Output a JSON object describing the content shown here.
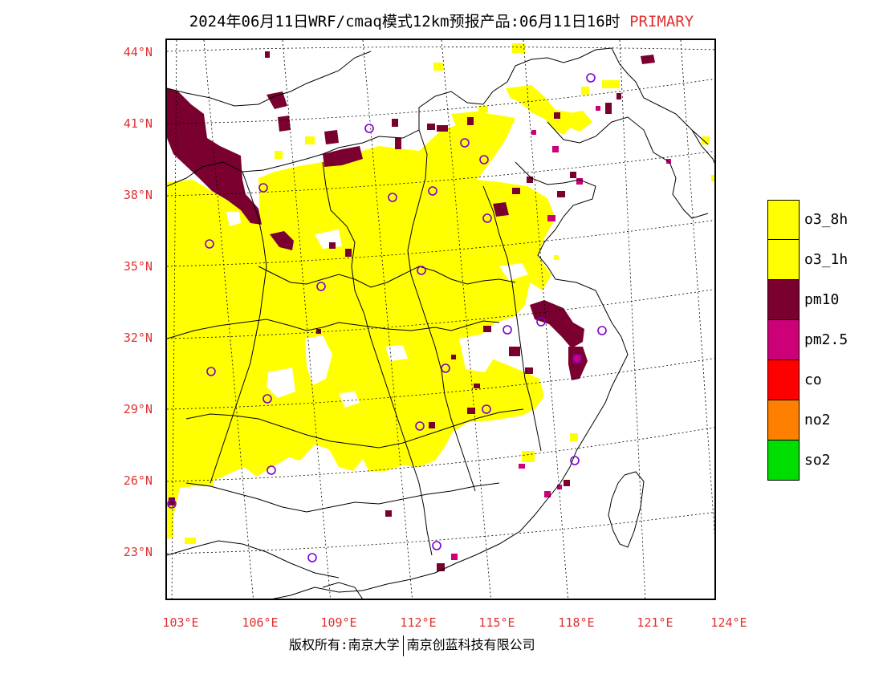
{
  "title": {
    "main": "2024年06月11日WRF/cmaq模式12km预报产品:06月11日16时",
    "tag": "PRIMARY"
  },
  "credit": {
    "left": "版权所有:南京大学",
    "right": "南京创蓝科技有限公司"
  },
  "axes": {
    "lat_labels": [
      "44°N",
      "41°N",
      "38°N",
      "35°N",
      "32°N",
      "29°N",
      "26°N",
      "23°N"
    ],
    "lon_labels": [
      "103°E",
      "106°E",
      "109°E",
      "112°E",
      "115°E",
      "118°E",
      "121°E",
      "124°E"
    ]
  },
  "legend": {
    "items": [
      {
        "label": "o3_8h",
        "color": "#ffff00"
      },
      {
        "label": "o3_1h",
        "color": "#ffff00"
      },
      {
        "label": "pm10",
        "color": "#7a0030"
      },
      {
        "label": "pm2.5",
        "color": "#cc0077"
      },
      {
        "label": "co",
        "color": "#ff0000"
      },
      {
        "label": "no2",
        "color": "#ff8000"
      },
      {
        "label": "so2",
        "color": "#00dd00"
      }
    ]
  },
  "colors": {
    "o3": "#ffff00",
    "pm10": "#7a0030",
    "pm25": "#cc0077",
    "station": "#7a00cc",
    "label": "#e03030"
  }
}
